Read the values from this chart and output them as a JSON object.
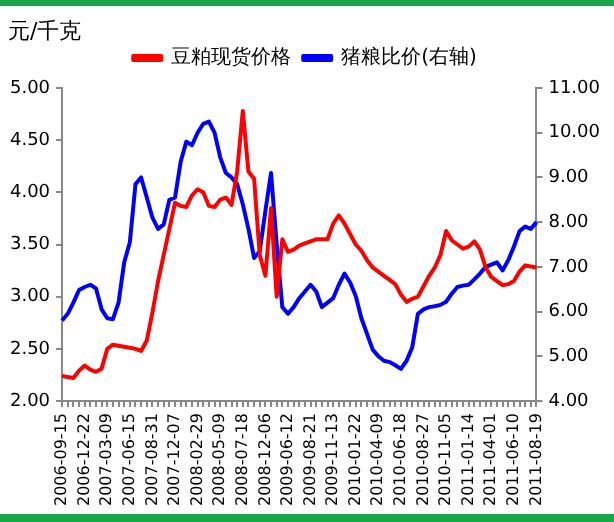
{
  "chart_data": {
    "type": "line",
    "ylabel": "元/千克",
    "legend": "top",
    "categories": [
      "2006-09-15",
      null,
      null,
      null,
      "2006-12-22",
      null,
      null,
      null,
      "2007-03-09",
      null,
      null,
      null,
      "2007-06-15",
      null,
      null,
      null,
      "2007-08-31",
      null,
      null,
      null,
      "2007-12-07",
      null,
      null,
      null,
      "2008-02-29",
      null,
      null,
      null,
      "2008-05-09",
      null,
      null,
      null,
      "2008-07-18",
      null,
      null,
      null,
      "2008-12-06",
      null,
      null,
      null,
      "2009-06-12",
      null,
      null,
      null,
      "2009-08-21",
      null,
      null,
      null,
      "2009-11-13",
      null,
      null,
      null,
      "2010-01-22",
      null,
      null,
      null,
      "2010-04-09",
      null,
      null,
      null,
      "2010-06-18",
      null,
      null,
      null,
      "2010-08-27",
      null,
      null,
      null,
      "2010-11-05",
      null,
      null,
      null,
      "2011-01-14",
      null,
      null,
      null,
      "2011-04-01",
      null,
      null,
      null,
      "2011-06-10",
      null,
      null,
      null,
      "2011-08-19"
    ],
    "series": [
      {
        "name": "豆粕现货价格",
        "color": "#ff0000",
        "values": [
          2.24,
          2.23,
          2.22,
          2.29,
          2.34,
          2.3,
          2.28,
          2.31,
          2.5,
          2.54,
          2.53,
          2.52,
          2.51,
          2.5,
          2.48,
          2.58,
          2.85,
          3.15,
          3.4,
          3.65,
          3.9,
          3.87,
          3.86,
          3.97,
          4.03,
          4.0,
          3.87,
          3.86,
          3.93,
          3.95,
          3.88,
          4.2,
          4.78,
          4.2,
          4.13,
          3.4,
          3.2,
          3.85,
          3.0,
          3.55,
          3.43,
          3.45,
          3.49,
          3.51,
          3.53,
          3.55,
          3.55,
          3.55,
          3.7,
          3.78,
          3.7,
          3.6,
          3.5,
          3.44,
          3.35,
          3.28,
          3.24,
          3.2,
          3.16,
          3.12,
          3.02,
          2.95,
          2.98,
          3.0,
          3.1,
          3.2,
          3.28,
          3.4,
          3.63,
          3.54,
          3.5,
          3.46,
          3.48,
          3.53,
          3.45,
          3.28,
          3.19,
          3.15,
          3.11,
          3.12,
          3.15,
          3.24,
          3.3,
          3.29,
          3.28
        ]
      },
      {
        "name": "猪粮比价(右轴)",
        "color": "#0000ff",
        "axis": "y2",
        "values": [
          5.8,
          5.95,
          6.2,
          6.48,
          6.55,
          6.6,
          6.52,
          6.05,
          5.85,
          5.83,
          6.2,
          7.1,
          7.55,
          8.85,
          9.0,
          8.55,
          8.1,
          7.85,
          7.95,
          8.5,
          8.55,
          9.35,
          9.8,
          9.72,
          10.0,
          10.2,
          10.25,
          10.0,
          9.45,
          9.1,
          9.0,
          8.85,
          8.4,
          7.85,
          7.2,
          7.35,
          8.25,
          9.1,
          7.5,
          6.1,
          5.95,
          6.1,
          6.3,
          6.45,
          6.6,
          6.45,
          6.1,
          6.2,
          6.3,
          6.6,
          6.85,
          6.65,
          6.35,
          5.85,
          5.5,
          5.15,
          5.0,
          4.9,
          4.87,
          4.8,
          4.72,
          4.9,
          5.2,
          5.95,
          6.05,
          6.1,
          6.12,
          6.15,
          6.22,
          6.4,
          6.55,
          6.58,
          6.6,
          6.72,
          6.85,
          7.0,
          7.05,
          7.1,
          6.92,
          7.15,
          7.45,
          7.8,
          7.9,
          7.85,
          8.0
        ]
      }
    ],
    "ylim": [
      2,
      5
    ],
    "yticks": [
      {
        "value": 2,
        "label": "2.00"
      },
      {
        "value": 2.5,
        "label": "2.50"
      },
      {
        "value": 3,
        "label": "3.00"
      },
      {
        "value": 3.5,
        "label": "3.50"
      },
      {
        "value": 4,
        "label": "4.00"
      },
      {
        "value": 4.5,
        "label": "4.50"
      },
      {
        "value": 5,
        "label": "5.00"
      }
    ],
    "y2lim": [
      4,
      11
    ],
    "y2ticks": [
      {
        "value": 4,
        "label": "4.00"
      },
      {
        "value": 5,
        "label": "5.00"
      },
      {
        "value": 6,
        "label": "6.00"
      },
      {
        "value": 7,
        "label": "7.00"
      },
      {
        "value": 8,
        "label": "8.00"
      },
      {
        "value": 9,
        "label": "9.00"
      },
      {
        "value": 10,
        "label": "10.00"
      },
      {
        "value": 11,
        "label": "11.00"
      }
    ],
    "grid": false,
    "marker": "none",
    "line_style": "solid"
  }
}
